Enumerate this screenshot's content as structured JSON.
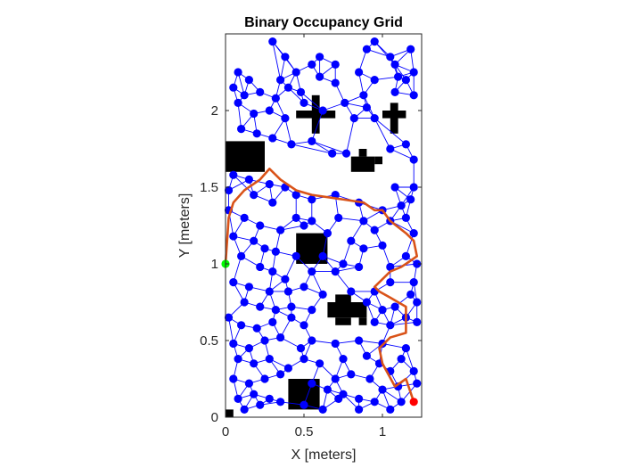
{
  "chart_data": {
    "type": "scatter",
    "title": "Binary Occupancy Grid",
    "xlabel": "X [meters]",
    "ylabel": "Y [meters]",
    "xlim": [
      0,
      1.25
    ],
    "ylim": [
      0,
      2.5
    ],
    "xticks": [
      0,
      0.5,
      1
    ],
    "yticks": [
      0,
      0.5,
      1,
      1.5,
      2
    ],
    "xtick_labels": [
      "0",
      "0.5",
      "1"
    ],
    "ytick_labels": [
      "0",
      "0.5",
      "1",
      "1.5",
      "2"
    ],
    "grid": false,
    "colors": {
      "obstacle": "#000000",
      "node": "#0000ff",
      "edge": "#0000ff",
      "path": "#d95319",
      "start": "#00ff00",
      "goal": "#ff0000"
    },
    "obstacles": [
      [
        0.0,
        1.6,
        0.25,
        1.8
      ],
      [
        0.45,
        1.0,
        0.65,
        1.2
      ],
      [
        0.4,
        0.05,
        0.6,
        0.25
      ],
      [
        0.0,
        0.0,
        0.05,
        0.05
      ],
      [
        0.45,
        1.95,
        0.7,
        2.0
      ],
      [
        0.55,
        1.85,
        0.6,
        2.1
      ],
      [
        1.0,
        1.95,
        1.15,
        2.0
      ],
      [
        1.05,
        1.85,
        1.1,
        2.05
      ],
      [
        0.8,
        1.6,
        0.95,
        1.7
      ],
      [
        0.85,
        1.7,
        0.9,
        1.75
      ],
      [
        0.95,
        1.65,
        1.0,
        1.7
      ],
      [
        0.65,
        0.65,
        0.9,
        0.75
      ],
      [
        0.7,
        0.75,
        0.8,
        0.8
      ],
      [
        0.7,
        0.6,
        0.8,
        0.65
      ],
      [
        0.85,
        0.65,
        0.9,
        0.6
      ]
    ],
    "nodes": [
      [
        0.3,
        2.45
      ],
      [
        0.38,
        2.35
      ],
      [
        0.55,
        2.3
      ],
      [
        0.6,
        2.35
      ],
      [
        0.7,
        2.3
      ],
      [
        0.9,
        2.4
      ],
      [
        0.95,
        2.45
      ],
      [
        1.05,
        2.35
      ],
      [
        1.08,
        2.3
      ],
      [
        1.18,
        2.4
      ],
      [
        0.08,
        2.25
      ],
      [
        0.15,
        2.2
      ],
      [
        0.35,
        2.2
      ],
      [
        0.45,
        2.25
      ],
      [
        0.6,
        2.22
      ],
      [
        0.7,
        2.18
      ],
      [
        0.85,
        2.25
      ],
      [
        0.95,
        2.2
      ],
      [
        1.1,
        2.22
      ],
      [
        1.2,
        2.25
      ],
      [
        0.05,
        2.15
      ],
      [
        0.12,
        2.1
      ],
      [
        0.22,
        2.12
      ],
      [
        0.32,
        2.08
      ],
      [
        0.4,
        2.15
      ],
      [
        0.48,
        2.12
      ],
      [
        0.76,
        2.05
      ],
      [
        0.88,
        2.1
      ],
      [
        0.9,
        2.02
      ],
      [
        1.15,
        2.2
      ],
      [
        0.08,
        2.05
      ],
      [
        0.18,
        1.98
      ],
      [
        0.28,
        2.0
      ],
      [
        0.38,
        1.95
      ],
      [
        0.5,
        2.05
      ],
      [
        0.62,
        2.0
      ],
      [
        0.82,
        1.95
      ],
      [
        0.95,
        1.95
      ],
      [
        1.08,
        2.12
      ],
      [
        1.2,
        2.1
      ],
      [
        0.1,
        1.88
      ],
      [
        0.2,
        1.85
      ],
      [
        0.3,
        1.82
      ],
      [
        0.42,
        1.78
      ],
      [
        0.55,
        1.8
      ],
      [
        0.68,
        1.72
      ],
      [
        0.77,
        1.72
      ],
      [
        1.05,
        1.75
      ],
      [
        1.15,
        1.78
      ],
      [
        1.2,
        1.68
      ],
      [
        0.05,
        1.58
      ],
      [
        0.15,
        1.55
      ],
      [
        0.28,
        1.52
      ],
      [
        0.38,
        1.5
      ],
      [
        0.45,
        1.45
      ],
      [
        0.55,
        1.42
      ],
      [
        0.7,
        1.45
      ],
      [
        0.85,
        1.4
      ],
      [
        1.08,
        1.5
      ],
      [
        1.2,
        1.5
      ],
      [
        0.02,
        1.48
      ],
      [
        0.18,
        1.45
      ],
      [
        0.3,
        1.4
      ],
      [
        0.45,
        1.3
      ],
      [
        0.55,
        1.28
      ],
      [
        0.72,
        1.3
      ],
      [
        0.88,
        1.28
      ],
      [
        1.0,
        1.35
      ],
      [
        1.12,
        1.38
      ],
      [
        1.18,
        1.42
      ],
      [
        0.02,
        1.35
      ],
      [
        0.12,
        1.3
      ],
      [
        0.22,
        1.25
      ],
      [
        0.35,
        1.22
      ],
      [
        0.5,
        1.25
      ],
      [
        0.65,
        1.2
      ],
      [
        0.8,
        1.15
      ],
      [
        0.95,
        1.22
      ],
      [
        1.05,
        1.28
      ],
      [
        1.15,
        1.3
      ],
      [
        0.05,
        1.18
      ],
      [
        0.18,
        1.15
      ],
      [
        0.25,
        1.1
      ],
      [
        0.32,
        1.08
      ],
      [
        0.45,
        1.05
      ],
      [
        0.62,
        1.05
      ],
      [
        0.75,
        1.0
      ],
      [
        0.88,
        1.1
      ],
      [
        1.0,
        1.12
      ],
      [
        1.2,
        1.2
      ],
      [
        0.1,
        1.05
      ],
      [
        0.22,
        0.98
      ],
      [
        0.3,
        0.95
      ],
      [
        0.38,
        0.9
      ],
      [
        0.55,
        0.95
      ],
      [
        0.7,
        0.95
      ],
      [
        0.85,
        0.98
      ],
      [
        1.05,
        0.98
      ],
      [
        1.15,
        1.05
      ],
      [
        1.22,
        1.0
      ],
      [
        0.05,
        0.88
      ],
      [
        0.15,
        0.85
      ],
      [
        0.28,
        0.82
      ],
      [
        0.4,
        0.82
      ],
      [
        0.5,
        0.85
      ],
      [
        0.62,
        0.8
      ],
      [
        0.8,
        0.82
      ],
      [
        0.95,
        0.82
      ],
      [
        1.05,
        0.88
      ],
      [
        1.2,
        0.88
      ],
      [
        0.12,
        0.75
      ],
      [
        0.22,
        0.72
      ],
      [
        0.32,
        0.7
      ],
      [
        0.42,
        0.72
      ],
      [
        0.55,
        0.7
      ],
      [
        0.9,
        0.75
      ],
      [
        1.0,
        0.7
      ],
      [
        1.08,
        0.72
      ],
      [
        1.18,
        0.8
      ],
      [
        1.22,
        0.75
      ],
      [
        0.02,
        0.65
      ],
      [
        0.1,
        0.6
      ],
      [
        0.2,
        0.58
      ],
      [
        0.3,
        0.62
      ],
      [
        0.42,
        0.65
      ],
      [
        0.5,
        0.6
      ],
      [
        0.95,
        0.62
      ],
      [
        1.05,
        0.6
      ],
      [
        1.15,
        0.65
      ],
      [
        1.22,
        0.62
      ],
      [
        0.05,
        0.48
      ],
      [
        0.15,
        0.45
      ],
      [
        0.25,
        0.5
      ],
      [
        0.35,
        0.52
      ],
      [
        0.48,
        0.45
      ],
      [
        0.55,
        0.5
      ],
      [
        0.7,
        0.48
      ],
      [
        0.85,
        0.5
      ],
      [
        1.0,
        0.48
      ],
      [
        1.15,
        0.45
      ],
      [
        0.08,
        0.38
      ],
      [
        0.18,
        0.35
      ],
      [
        0.28,
        0.38
      ],
      [
        0.4,
        0.32
      ],
      [
        0.5,
        0.38
      ],
      [
        0.6,
        0.35
      ],
      [
        0.75,
        0.38
      ],
      [
        0.9,
        0.4
      ],
      [
        0.98,
        0.35
      ],
      [
        1.12,
        0.38
      ],
      [
        0.05,
        0.25
      ],
      [
        0.15,
        0.22
      ],
      [
        0.25,
        0.25
      ],
      [
        0.35,
        0.28
      ],
      [
        0.55,
        0.22
      ],
      [
        0.7,
        0.25
      ],
      [
        0.8,
        0.28
      ],
      [
        0.92,
        0.25
      ],
      [
        1.05,
        0.3
      ],
      [
        1.2,
        0.3
      ],
      [
        0.08,
        0.12
      ],
      [
        0.18,
        0.15
      ],
      [
        0.28,
        0.12
      ],
      [
        0.65,
        0.18
      ],
      [
        0.75,
        0.15
      ],
      [
        0.85,
        0.12
      ],
      [
        1.0,
        0.18
      ],
      [
        1.1,
        0.2
      ],
      [
        1.12,
        0.1
      ],
      [
        1.22,
        0.22
      ],
      [
        0.12,
        0.05
      ],
      [
        0.22,
        0.08
      ],
      [
        0.35,
        0.1
      ],
      [
        0.5,
        0.08
      ],
      [
        0.62,
        0.05
      ],
      [
        0.72,
        0.12
      ],
      [
        0.85,
        0.05
      ],
      [
        0.95,
        0.1
      ],
      [
        1.05,
        0.05
      ]
    ],
    "path": [
      [
        1.2,
        0.1
      ],
      [
        1.15,
        0.25
      ],
      [
        1.08,
        0.2
      ],
      [
        1.0,
        0.35
      ],
      [
        0.98,
        0.45
      ],
      [
        1.05,
        0.52
      ],
      [
        1.15,
        0.55
      ],
      [
        1.15,
        0.72
      ],
      [
        1.05,
        0.78
      ],
      [
        0.98,
        0.82
      ],
      [
        0.95,
        0.85
      ],
      [
        1.05,
        0.95
      ],
      [
        1.12,
        0.98
      ],
      [
        1.15,
        1.0
      ],
      [
        1.22,
        1.05
      ],
      [
        1.2,
        1.15
      ],
      [
        1.15,
        1.2
      ],
      [
        1.05,
        1.28
      ],
      [
        1.0,
        1.35
      ],
      [
        0.95,
        1.35
      ],
      [
        0.88,
        1.4
      ],
      [
        0.75,
        1.42
      ],
      [
        0.55,
        1.45
      ],
      [
        0.45,
        1.48
      ],
      [
        0.35,
        1.55
      ],
      [
        0.28,
        1.62
      ],
      [
        0.22,
        1.55
      ],
      [
        0.12,
        1.48
      ],
      [
        0.05,
        1.4
      ],
      [
        0.02,
        1.3
      ],
      [
        0.0,
        1.0
      ]
    ],
    "start": [
      0.0,
      1.0
    ],
    "goal": [
      1.2,
      0.1
    ]
  }
}
